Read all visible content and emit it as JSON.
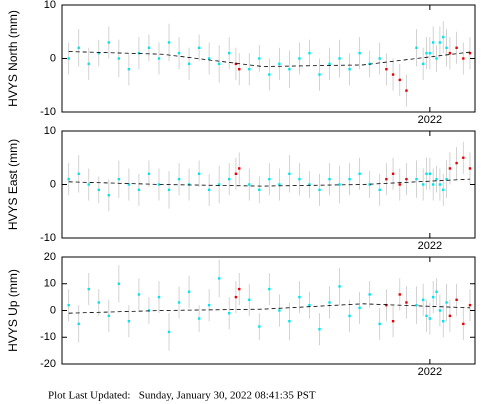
{
  "chart_data": [
    {
      "type": "scatter",
      "ylabel": "HVYS North (mm)",
      "xlim": [
        2020.9,
        2022.135
      ],
      "xticks": [
        2022
      ],
      "ylim": [
        -10,
        10
      ],
      "yticks": [
        -10,
        0,
        10
      ],
      "series": [
        {
          "color": "#00e5ee",
          "mode": "markers",
          "x": [
            2020.92,
            2020.95,
            2020.98,
            2021.01,
            2021.04,
            2021.07,
            2021.1,
            2021.13,
            2021.16,
            2021.19,
            2021.22,
            2021.25,
            2021.28,
            2021.31,
            2021.34,
            2021.37,
            2021.4,
            2021.46,
            2021.49,
            2021.52,
            2021.55,
            2021.58,
            2021.61,
            2021.64,
            2021.67,
            2021.7,
            2021.73,
            2021.76,
            2021.79,
            2021.82,
            2021.85,
            2021.96,
            2021.98,
            2022.0,
            2022.02,
            2022.03,
            2022.04,
            2022.05,
            2022.01,
            2021.99
          ],
          "values": [
            0,
            2,
            -1,
            1,
            3,
            0,
            -2,
            1,
            2,
            0,
            3,
            1,
            -1,
            2,
            0,
            -1,
            1,
            -2,
            0,
            -3,
            -1,
            -2,
            0,
            1,
            -3,
            -1,
            0,
            -2,
            1,
            -1,
            0,
            2,
            -1,
            1,
            0,
            3,
            4,
            2,
            3,
            1
          ],
          "errors": [
            3,
            3.5,
            3,
            2.5,
            3,
            3.5,
            3,
            3,
            2.5,
            3,
            3.5,
            3,
            3,
            2.5,
            3,
            3.5,
            3,
            3,
            2.5,
            3,
            3,
            3.5,
            3,
            2.5,
            3,
            3,
            3.5,
            3,
            3,
            2.5,
            3,
            3.5,
            3,
            3,
            2.5,
            3,
            3,
            3.5,
            3,
            3
          ]
        },
        {
          "color": "#ee0000",
          "mode": "markers",
          "x": [
            2021.42,
            2021.43,
            2021.87,
            2021.89,
            2021.91,
            2021.93,
            2022.06,
            2022.08,
            2022.1,
            2022.12
          ],
          "values": [
            -1,
            -2,
            -2,
            -3,
            -4,
            -6,
            1,
            2,
            0,
            1
          ],
          "errors": [
            3,
            3,
            3,
            3,
            3,
            3,
            3,
            3,
            3,
            3
          ]
        },
        {
          "color": "#000000",
          "mode": "dashed",
          "x": [
            2020.92,
            2021.2,
            2021.5,
            2021.8,
            2022.12
          ],
          "values": [
            1.3,
            0.8,
            -1.5,
            -1.2,
            1.2
          ]
        }
      ]
    },
    {
      "type": "scatter",
      "ylabel": "HVYS East (mm)",
      "xlim": [
        2020.9,
        2022.135
      ],
      "xticks": [
        2022
      ],
      "ylim": [
        -10,
        10
      ],
      "yticks": [
        -10,
        0,
        10
      ],
      "series": [
        {
          "color": "#00e5ee",
          "mode": "markers",
          "x": [
            2020.92,
            2020.95,
            2020.98,
            2021.01,
            2021.04,
            2021.07,
            2021.1,
            2021.13,
            2021.16,
            2021.19,
            2021.22,
            2021.25,
            2021.28,
            2021.31,
            2021.34,
            2021.37,
            2021.4,
            2021.46,
            2021.49,
            2021.52,
            2021.55,
            2021.58,
            2021.61,
            2021.64,
            2021.67,
            2021.7,
            2021.73,
            2021.76,
            2021.79,
            2021.82,
            2021.85,
            2021.96,
            2021.98,
            2022.0,
            2022.02,
            2022.03,
            2022.04,
            2022.05,
            2022.01,
            2021.99
          ],
          "values": [
            1,
            2,
            0,
            -1,
            -2,
            1,
            0,
            -1,
            2,
            0,
            -1,
            1,
            0,
            2,
            -1,
            0,
            1,
            0,
            -1,
            1,
            0,
            2,
            1,
            0,
            -1,
            1,
            0,
            1,
            2,
            0,
            -1,
            1,
            0,
            2,
            1,
            0,
            -1,
            1,
            0,
            2
          ],
          "errors": [
            3,
            3.5,
            3,
            2.5,
            3,
            3.5,
            3,
            3,
            2.5,
            3,
            3.5,
            3,
            3,
            2.5,
            3,
            3.5,
            3,
            3,
            2.5,
            3,
            3,
            3.5,
            3,
            2.5,
            3,
            3,
            3.5,
            3,
            3,
            2.5,
            3,
            3.5,
            3,
            3,
            2.5,
            3,
            3,
            3.5,
            3,
            3
          ]
        },
        {
          "color": "#ee0000",
          "mode": "markers",
          "x": [
            2021.42,
            2021.43,
            2021.87,
            2021.89,
            2021.91,
            2021.93,
            2022.06,
            2022.08,
            2022.1,
            2022.12
          ],
          "values": [
            2,
            3,
            1,
            2,
            0,
            1,
            3,
            4,
            5,
            3
          ],
          "errors": [
            3,
            3,
            3,
            3,
            3,
            3,
            3,
            3,
            3,
            3
          ]
        },
        {
          "color": "#000000",
          "mode": "dashed",
          "x": [
            2020.92,
            2021.2,
            2021.5,
            2021.8,
            2022.12
          ],
          "values": [
            0.5,
            0,
            -0.3,
            0,
            1
          ]
        }
      ]
    },
    {
      "type": "scatter",
      "ylabel": "HVYS Up (mm)",
      "xlim": [
        2020.9,
        2022.135
      ],
      "xticks": [
        2022
      ],
      "ylim": [
        -20,
        20
      ],
      "yticks": [
        -20,
        -10,
        0,
        10,
        20
      ],
      "series": [
        {
          "color": "#00e5ee",
          "mode": "markers",
          "x": [
            2020.92,
            2020.95,
            2020.98,
            2021.01,
            2021.04,
            2021.07,
            2021.1,
            2021.13,
            2021.16,
            2021.19,
            2021.22,
            2021.25,
            2021.28,
            2021.31,
            2021.34,
            2021.37,
            2021.4,
            2021.46,
            2021.49,
            2021.52,
            2021.55,
            2021.58,
            2021.61,
            2021.64,
            2021.67,
            2021.7,
            2021.73,
            2021.76,
            2021.79,
            2021.82,
            2021.85,
            2021.96,
            2021.98,
            2022.0,
            2022.02,
            2022.03,
            2022.04,
            2022.05,
            2022.01,
            2021.99
          ],
          "values": [
            2,
            -5,
            8,
            3,
            -2,
            10,
            -4,
            6,
            0,
            5,
            -8,
            3,
            7,
            -3,
            2,
            12,
            -1,
            4,
            -6,
            8,
            0,
            -4,
            5,
            2,
            -7,
            3,
            9,
            -2,
            1,
            6,
            -5,
            2,
            4,
            -3,
            7,
            0,
            -4,
            3,
            5,
            -2
          ],
          "errors": [
            6,
            7,
            6,
            5,
            6,
            7,
            6,
            6,
            5,
            6,
            7,
            6,
            6,
            5,
            6,
            7,
            6,
            6,
            5,
            6,
            6,
            7,
            6,
            5,
            6,
            6,
            7,
            6,
            6,
            5,
            6,
            7,
            6,
            6,
            5,
            6,
            6,
            7,
            6,
            6
          ]
        },
        {
          "color": "#ee0000",
          "mode": "markers",
          "x": [
            2021.42,
            2021.43,
            2021.87,
            2021.89,
            2021.91,
            2021.93,
            2022.06,
            2022.08,
            2022.1,
            2022.12
          ],
          "values": [
            5,
            8,
            2,
            -4,
            6,
            3,
            -2,
            4,
            -5,
            2
          ],
          "errors": [
            6,
            6,
            6,
            6,
            6,
            6,
            6,
            6,
            6,
            6
          ]
        },
        {
          "color": "#000000",
          "mode": "dashed",
          "x": [
            2020.92,
            2021.2,
            2021.5,
            2021.8,
            2022.12
          ],
          "values": [
            -1,
            0,
            0.5,
            2.5,
            1
          ]
        }
      ]
    }
  ],
  "footer": "Plot Last Updated:   Sunday, January 30, 2022 08:41:35 PST"
}
